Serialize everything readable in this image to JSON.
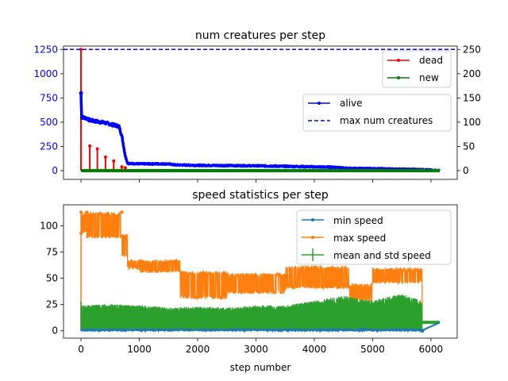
{
  "chart_data": [
    {
      "type": "line",
      "title": "num creatures per step",
      "xlabel": "",
      "ylabel": "",
      "xlim": [
        -300,
        6450
      ],
      "ylim_left": [
        -90,
        1285
      ],
      "ylim_right": [
        -18,
        257
      ],
      "x_ticks": [
        0,
        1000,
        2000,
        3000,
        4000,
        5000,
        6000
      ],
      "y_ticks_left": [
        0,
        250,
        500,
        750,
        1000,
        1250
      ],
      "y_ticks_right": [
        0,
        50,
        100,
        150,
        200,
        250
      ],
      "y_tick_labels_left": [
        "0",
        "250",
        "500",
        "750",
        "1000",
        "1250"
      ],
      "y_tick_labels_right": [
        "0",
        "50",
        "100",
        "150",
        "200",
        "250"
      ],
      "left_tick_color": "#0000ff",
      "legends": [
        {
          "position": "upper right",
          "entries": [
            {
              "label": "dead",
              "color": "#ff0000",
              "marker": "dot"
            },
            {
              "label": "new",
              "color": "#008000",
              "marker": "dot"
            }
          ]
        },
        {
          "position": "center right",
          "entries": [
            {
              "label": "alive",
              "color": "#0000ff",
              "marker": "dot"
            },
            {
              "label": "max num creatures",
              "color": "#0000ff",
              "style": "dashed"
            }
          ]
        }
      ],
      "series": [
        {
          "name": "alive",
          "axis": "right",
          "color": "#0000ff",
          "x": [
            0,
            10,
            30,
            100,
            150,
            300,
            400,
            500,
            600,
            650,
            700,
            760,
            800,
            1000,
            1500,
            1600,
            2000,
            3000,
            4400,
            4500,
            5000,
            5900,
            6000,
            6150
          ],
          "y": [
            160,
            110,
            110,
            108,
            104,
            101,
            99,
            96,
            93,
            92,
            72,
            30,
            15,
            14,
            14,
            12,
            11,
            10,
            7,
            5,
            4,
            2,
            1,
            0
          ]
        },
        {
          "name": "max num creatures",
          "axis": "right",
          "color": "#0000ff",
          "style": "dashed",
          "y_constant": 250
        },
        {
          "name": "dead",
          "axis": "left",
          "color": "#ff0000",
          "style": "spikes",
          "x": [
            0,
            150,
            280,
            420,
            560,
            700,
            760
          ],
          "y": [
            1250,
            255,
            225,
            140,
            100,
            40,
            30
          ]
        },
        {
          "name": "new",
          "axis": "left",
          "color": "#008000",
          "style": "flat",
          "x": [
            0,
            6150
          ],
          "y": [
            5,
            5
          ]
        }
      ]
    },
    {
      "type": "line",
      "title": "speed statistics per step",
      "xlabel": "step number",
      "ylabel": "",
      "xlim": [
        -300,
        6450
      ],
      "ylim": [
        -7,
        120
      ],
      "x_ticks": [
        0,
        1000,
        2000,
        3000,
        4000,
        5000,
        6000
      ],
      "x_tick_labels": [
        "0",
        "1000",
        "2000",
        "3000",
        "4000",
        "5000",
        "6000"
      ],
      "y_ticks": [
        0,
        25,
        50,
        75,
        100
      ],
      "y_tick_labels": [
        "0",
        "25",
        "50",
        "75",
        "100"
      ],
      "legend": {
        "position": "upper right",
        "entries": [
          {
            "label": "min speed",
            "color": "#1f77b4",
            "marker": "dot"
          },
          {
            "label": "max speed",
            "color": "#ff7f0e",
            "marker": "dot"
          },
          {
            "label": "mean and std speed",
            "color": "#2ca02c",
            "marker": "errorbar"
          }
        ]
      },
      "series": [
        {
          "name": "max speed",
          "color": "#ff7f0e",
          "bands": [
            {
              "x": [
                0,
                100
              ],
              "low": 93,
              "high": 113
            },
            {
              "x": [
                100,
                700
              ],
              "low": 88,
              "high": 113
            },
            {
              "x": [
                700,
                800
              ],
              "low": 70,
              "high": 92
            },
            {
              "x": [
                800,
                1000
              ],
              "low": 58,
              "high": 68
            },
            {
              "x": [
                1000,
                1700
              ],
              "low": 55,
              "high": 68
            },
            {
              "x": [
                1700,
                2500
              ],
              "low": 30,
              "high": 57
            },
            {
              "x": [
                2500,
                3500
              ],
              "low": 35,
              "high": 55
            },
            {
              "x": [
                3500,
                4600
              ],
              "low": 40,
              "high": 62
            },
            {
              "x": [
                4600,
                5000
              ],
              "low": 28,
              "high": 45
            },
            {
              "x": [
                5000,
                5850
              ],
              "low": 45,
              "high": 60
            }
          ],
          "tail": {
            "x": [
              5850,
              6150
            ],
            "y": 8
          }
        },
        {
          "name": "mean and std speed",
          "color": "#2ca02c",
          "x": [
            0,
            500,
            1000,
            1500,
            2000,
            2500,
            3000,
            3500,
            4000,
            4500,
            5000,
            5500,
            5850,
            6150
          ],
          "mean": [
            10,
            11,
            10,
            9,
            10,
            10,
            11,
            11,
            12,
            13,
            12,
            14,
            12,
            8
          ],
          "std": [
            12,
            12,
            12,
            11,
            11,
            10,
            11,
            11,
            14,
            17,
            14,
            18,
            14,
            0
          ]
        },
        {
          "name": "min speed",
          "color": "#1f77b4",
          "x": [
            0,
            1000,
            2000,
            3000,
            4000,
            5000,
            5850,
            6150
          ],
          "y": [
            0,
            0,
            0,
            0,
            0,
            0,
            0,
            8
          ]
        }
      ]
    }
  ]
}
